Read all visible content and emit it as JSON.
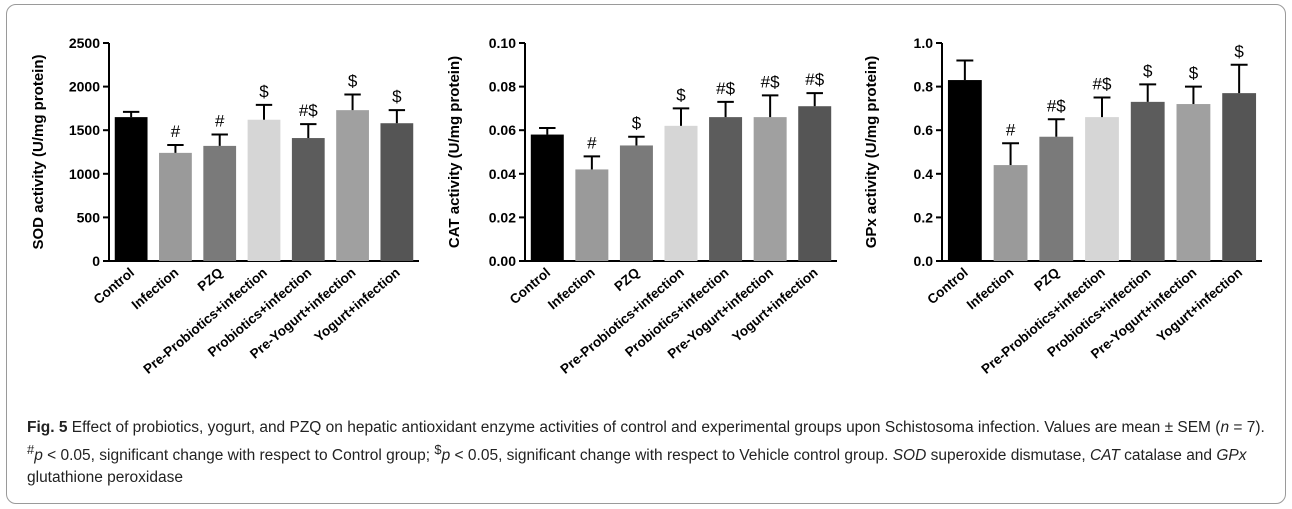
{
  "chart_data": [
    {
      "type": "bar",
      "ylabel": "SOD activity (U/mg protein)",
      "ylim": [
        0,
        2500
      ],
      "yticks": [
        "0",
        "500",
        "1000",
        "1500",
        "2000",
        "2500"
      ],
      "categories": [
        "Control",
        "Infection",
        "PZQ",
        "Pre-Probiotics+infection",
        "Probiotics+infection",
        "Pre-Yogurt+infection",
        "Yogurt+infection"
      ],
      "values": [
        1650,
        1240,
        1320,
        1620,
        1410,
        1730,
        1580
      ],
      "errors": [
        60,
        90,
        130,
        170,
        160,
        180,
        150
      ],
      "annotations": [
        "",
        "#",
        "#",
        "$",
        "#$",
        "$",
        "$"
      ],
      "colors": [
        "#000000",
        "#9a9a9a",
        "#7a7a7a",
        "#d6d6d6",
        "#5c5c5c",
        "#a0a0a0",
        "#555555"
      ]
    },
    {
      "type": "bar",
      "ylabel": "CAT activity (U/mg protein)",
      "ylim": [
        0,
        0.1
      ],
      "yticks": [
        "0.00",
        "0.02",
        "0.04",
        "0.06",
        "0.08",
        "0.10"
      ],
      "categories": [
        "Control",
        "Infection",
        "PZQ",
        "Pre-Probiotics+infection",
        "Probiotics+infection",
        "Pre-Yogurt+infection",
        "Yogurt+infection"
      ],
      "values": [
        0.058,
        0.042,
        0.053,
        0.062,
        0.066,
        0.066,
        0.071
      ],
      "errors": [
        0.003,
        0.006,
        0.004,
        0.008,
        0.007,
        0.01,
        0.006
      ],
      "annotations": [
        "",
        "#",
        "$",
        "$",
        "#$",
        "#$",
        "#$"
      ],
      "colors": [
        "#000000",
        "#9a9a9a",
        "#7a7a7a",
        "#d6d6d6",
        "#5c5c5c",
        "#a0a0a0",
        "#555555"
      ]
    },
    {
      "type": "bar",
      "ylabel": "GPx activity (U/mg protein)",
      "ylim": [
        0,
        1.0
      ],
      "yticks": [
        "0.0",
        "0.2",
        "0.4",
        "0.6",
        "0.8",
        "1.0"
      ],
      "categories": [
        "Control",
        "Infection",
        "PZQ",
        "Pre-Probiotics+infection",
        "Probiotics+infection",
        "Pre-Yogurt+infection",
        "Yogurt+infection"
      ],
      "values": [
        0.83,
        0.44,
        0.57,
        0.66,
        0.73,
        0.72,
        0.77
      ],
      "errors": [
        0.09,
        0.1,
        0.08,
        0.09,
        0.08,
        0.08,
        0.13
      ],
      "annotations": [
        "",
        "#",
        "#$",
        "#$",
        "$",
        "$",
        "$"
      ],
      "colors": [
        "#000000",
        "#9a9a9a",
        "#7a7a7a",
        "#d6d6d6",
        "#5c5c5c",
        "#a0a0a0",
        "#555555"
      ]
    }
  ],
  "caption": {
    "label": "Fig. 5",
    "text_1": " Effect of probiotics, yogurt, and PZQ on hepatic antioxidant enzyme activities of control and experimental groups upon Schistosoma infection. Values are mean ± SEM (",
    "n_italic": "n",
    "text_2": " = 7). ",
    "hash_sup": "#",
    "p1_italic": "p",
    "text_3": " < 0.05, significant change with respect to Control group; ",
    "dollar_sup": "$",
    "p2_italic": "p",
    "text_4": " < 0.05, significant change with respect to Vehicle control group. ",
    "sod_italic": "SOD",
    "text_5": " superoxide dismutase, ",
    "cat_italic": "CAT",
    "text_6": " catalase and ",
    "gpx_italic": "GPx",
    "text_7": " glutathione peroxidase"
  }
}
